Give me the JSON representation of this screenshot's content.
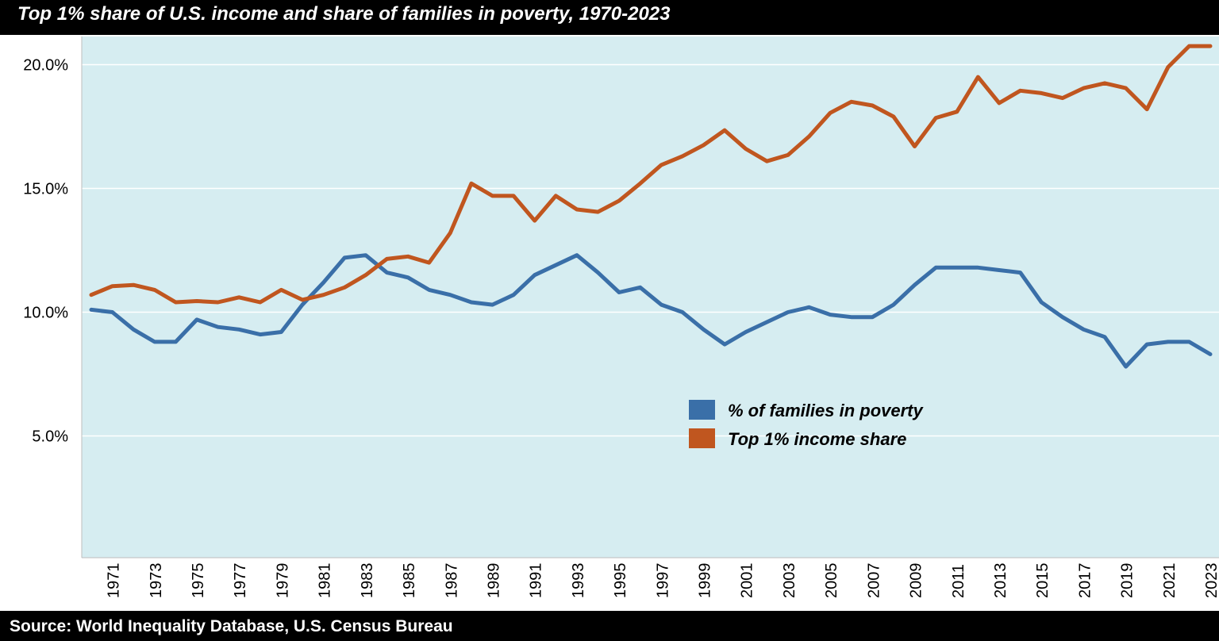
{
  "title": "Top 1% share of U.S. income and share of families in poverty, 1970-2023",
  "source": "Source: World Inequality Database, U.S. Census Bureau",
  "colors": {
    "plot_background": "#d6edf1",
    "gridline": "#ffffff",
    "poverty": "#3a6fa8",
    "top1": "#c0561f"
  },
  "chart_data": {
    "type": "line",
    "title": "Top 1% share of U.S. income and share of families in poverty, 1970-2023",
    "xlabel": "",
    "ylabel": "",
    "ylim": [
      0,
      21
    ],
    "xlim": [
      1970,
      2023
    ],
    "y_ticks": [
      {
        "value": 5,
        "label": "5.0%"
      },
      {
        "value": 10,
        "label": "10.0%"
      },
      {
        "value": 15,
        "label": "15.0%"
      },
      {
        "value": 20,
        "label": "20.0%"
      }
    ],
    "x_ticks": [
      "1971",
      "1973",
      "1975",
      "1977",
      "1979",
      "1981",
      "1983",
      "1985",
      "1987",
      "1989",
      "1991",
      "1993",
      "1995",
      "1997",
      "1999",
      "2001",
      "2003",
      "2005",
      "2007",
      "2009",
      "2011",
      "2013",
      "2015",
      "2017",
      "2019",
      "2021",
      "2023"
    ],
    "grid": true,
    "legend": "center-right",
    "x": [
      1970,
      1971,
      1972,
      1973,
      1974,
      1975,
      1976,
      1977,
      1978,
      1979,
      1980,
      1981,
      1982,
      1983,
      1984,
      1985,
      1986,
      1987,
      1988,
      1989,
      1990,
      1991,
      1992,
      1993,
      1994,
      1995,
      1996,
      1997,
      1998,
      1999,
      2000,
      2001,
      2002,
      2003,
      2004,
      2005,
      2006,
      2007,
      2008,
      2009,
      2010,
      2011,
      2012,
      2013,
      2014,
      2015,
      2016,
      2017,
      2018,
      2019,
      2020,
      2021,
      2022,
      2023
    ],
    "series": [
      {
        "name": "% of families in poverty",
        "color": "#3a6fa8",
        "values": [
          10.1,
          10.0,
          9.3,
          8.8,
          8.8,
          9.7,
          9.4,
          9.3,
          9.1,
          9.2,
          10.3,
          11.2,
          12.2,
          12.3,
          11.6,
          11.4,
          10.9,
          10.7,
          10.4,
          10.3,
          10.7,
          11.5,
          11.9,
          12.3,
          11.6,
          10.8,
          11.0,
          10.3,
          10.0,
          9.3,
          8.7,
          9.2,
          9.6,
          10.0,
          10.2,
          9.9,
          9.8,
          9.8,
          10.3,
          11.1,
          11.8,
          11.8,
          11.8,
          11.7,
          11.6,
          10.4,
          9.8,
          9.3,
          9.0,
          7.8,
          8.7,
          8.8,
          8.8,
          8.3
        ]
      },
      {
        "name": "Top 1% income share",
        "color": "#c0561f",
        "values": [
          10.7,
          11.05,
          11.1,
          10.9,
          10.4,
          10.45,
          10.4,
          10.6,
          10.4,
          10.9,
          10.5,
          10.7,
          11.0,
          11.5,
          12.15,
          12.25,
          12.0,
          13.2,
          15.2,
          14.7,
          14.7,
          13.7,
          14.7,
          14.15,
          14.05,
          14.5,
          15.2,
          15.95,
          16.3,
          16.75,
          17.35,
          16.6,
          16.1,
          16.35,
          17.1,
          18.05,
          18.5,
          18.35,
          17.9,
          16.7,
          17.85,
          18.1,
          19.5,
          18.45,
          18.95,
          18.85,
          18.65,
          19.05,
          19.25,
          19.05,
          18.2,
          19.9,
          20.75,
          20.75
        ]
      }
    ]
  }
}
